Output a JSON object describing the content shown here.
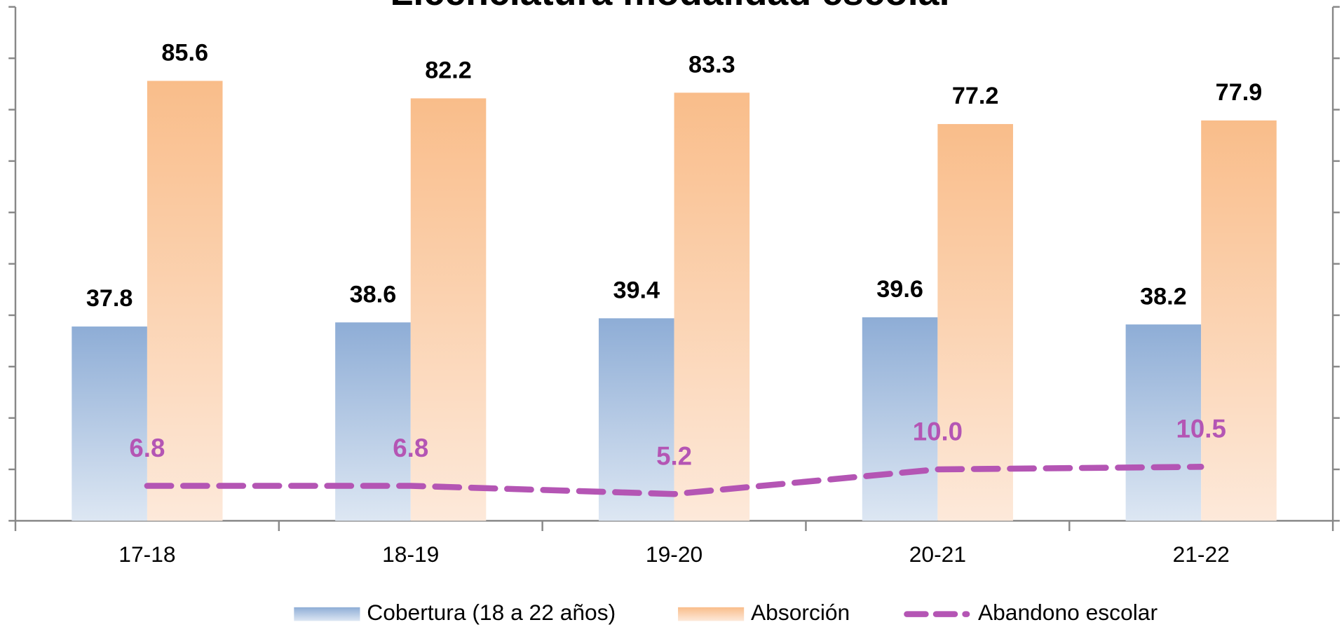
{
  "chart_data": {
    "type": "bar",
    "title": "Licenciatura modalidad escolar",
    "categories": [
      "17-18",
      "18-19",
      "19-20",
      "20-21",
      "21-22"
    ],
    "series": [
      {
        "name": "Cobertura (18 a 22 años)",
        "type": "bar",
        "color": "#8eadd6",
        "values": [
          37.8,
          38.6,
          39.4,
          39.6,
          38.2
        ]
      },
      {
        "name": "Absorción",
        "type": "bar",
        "color": "#f9bd8a",
        "values": [
          85.6,
          82.2,
          83.3,
          77.2,
          77.9
        ]
      },
      {
        "name": "Abandono escolar",
        "type": "line",
        "color": "#b455b4",
        "values": [
          6.8,
          6.8,
          5.2,
          10.0,
          10.5
        ],
        "value_labels": [
          "6.8",
          "6.8",
          "5.2",
          "10.0",
          "10.5"
        ]
      }
    ],
    "ylim": [
      0,
      100
    ],
    "yticks": [
      0,
      10,
      20,
      30,
      40,
      50,
      60,
      70,
      80,
      90,
      100
    ],
    "legend": "bottom"
  }
}
